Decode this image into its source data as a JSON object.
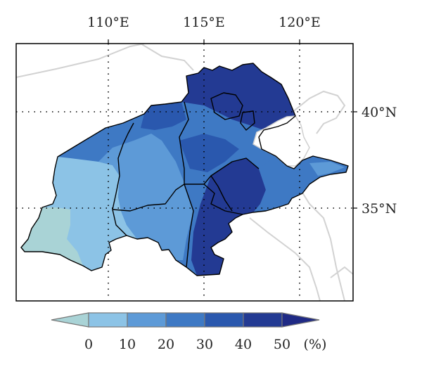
{
  "map": {
    "lon_ticks": [
      "110°E",
      "115°E",
      "120°E"
    ],
    "lat_ticks": [
      "40°N",
      "35°N"
    ],
    "gridlines": "dotted",
    "colors": {
      "frame": "#000000",
      "gridline": "#000000",
      "background": "#ffffff",
      "outside_border": "#cfcfcf",
      "region_border": "#000000"
    }
  },
  "colorbar": {
    "tick_labels": [
      "0",
      "10",
      "20",
      "30",
      "40",
      "50"
    ],
    "unit": "(%)",
    "class_colors": [
      "#a9d3d6",
      "#8cc3e6",
      "#5d9ad7",
      "#3e79c4",
      "#2a58ae",
      "#233a93",
      "#1f2a85"
    ]
  }
}
